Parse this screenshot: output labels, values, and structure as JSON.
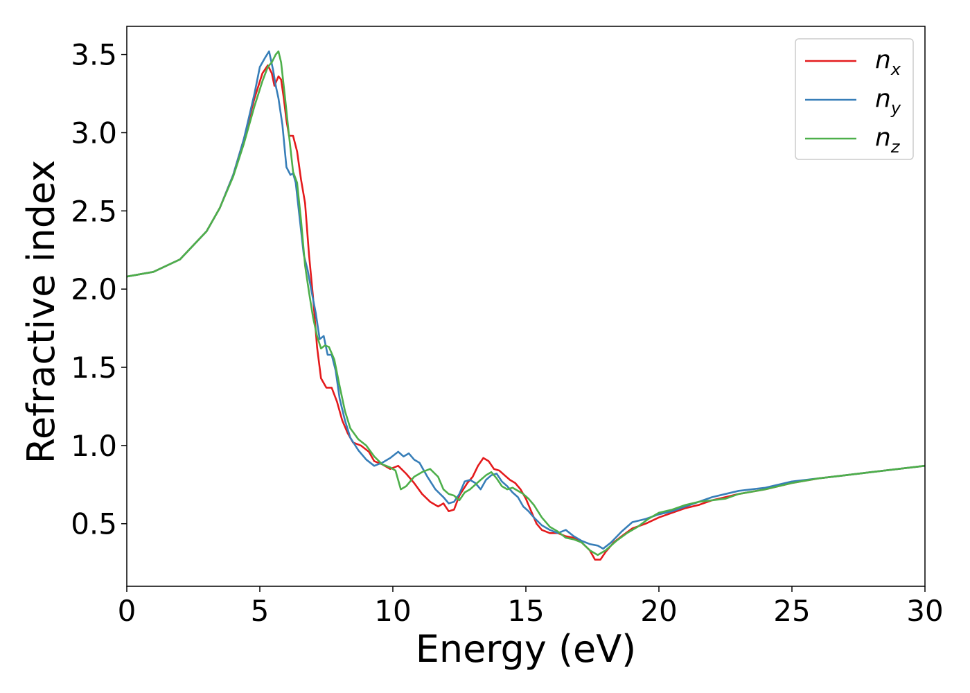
{
  "chart_data": {
    "type": "line",
    "xlabel": "Energy (eV)",
    "ylabel": "Refractive index",
    "xlim": [
      0,
      30
    ],
    "ylim": [
      0.1,
      3.68
    ],
    "xticks": [
      0,
      5,
      10,
      15,
      20,
      25,
      30
    ],
    "xtick_labels": [
      "0",
      "5",
      "10",
      "15",
      "20",
      "25",
      "30"
    ],
    "yticks": [
      0.5,
      1.0,
      1.5,
      2.0,
      2.5,
      3.0,
      3.5
    ],
    "ytick_labels": [
      "0.5",
      "1.0",
      "1.5",
      "2.0",
      "2.5",
      "3.0",
      "3.5"
    ],
    "grid": false,
    "legend_position": "top-right",
    "series": [
      {
        "name": "n_x",
        "label_main": "n",
        "label_sub": "x",
        "color": "#e41a1c",
        "x": [
          0,
          1,
          2,
          3,
          3.5,
          4,
          4.4,
          4.8,
          5.1,
          5.3,
          5.45,
          5.55,
          5.7,
          5.8,
          5.9,
          6.0,
          6.1,
          6.25,
          6.4,
          6.55,
          6.7,
          6.85,
          7.0,
          7.15,
          7.3,
          7.5,
          7.7,
          7.9,
          8.1,
          8.3,
          8.5,
          8.8,
          9.1,
          9.3,
          9.6,
          9.9,
          10.2,
          10.5,
          10.8,
          11.1,
          11.4,
          11.7,
          11.9,
          12.1,
          12.3,
          12.5,
          12.8,
          13.0,
          13.2,
          13.4,
          13.6,
          13.8,
          14.0,
          14.2,
          14.4,
          14.6,
          14.8,
          15.0,
          15.2,
          15.4,
          15.6,
          15.9,
          16.2,
          16.5,
          16.8,
          17.1,
          17.4,
          17.6,
          17.8,
          18.0,
          18.3,
          18.6,
          19.0,
          19.5,
          20.0,
          20.5,
          21.0,
          21.5,
          22.0,
          22.5,
          23.0,
          24.0,
          25.0,
          26.0,
          27.0,
          28.0,
          29.0,
          30.0
        ],
        "y": [
          2.08,
          2.11,
          2.19,
          2.37,
          2.52,
          2.73,
          2.96,
          3.22,
          3.38,
          3.43,
          3.38,
          3.3,
          3.36,
          3.34,
          3.22,
          3.08,
          2.98,
          2.98,
          2.88,
          2.7,
          2.55,
          2.22,
          1.95,
          1.63,
          1.43,
          1.37,
          1.37,
          1.28,
          1.16,
          1.08,
          1.02,
          1.0,
          0.96,
          0.9,
          0.88,
          0.85,
          0.87,
          0.82,
          0.76,
          0.69,
          0.64,
          0.61,
          0.63,
          0.58,
          0.59,
          0.68,
          0.76,
          0.8,
          0.87,
          0.92,
          0.9,
          0.85,
          0.84,
          0.81,
          0.78,
          0.76,
          0.72,
          0.66,
          0.58,
          0.5,
          0.46,
          0.44,
          0.44,
          0.42,
          0.41,
          0.38,
          0.33,
          0.27,
          0.27,
          0.32,
          0.38,
          0.42,
          0.47,
          0.5,
          0.54,
          0.57,
          0.6,
          0.62,
          0.65,
          0.67,
          0.69,
          0.72,
          0.76,
          0.79,
          0.81,
          0.83,
          0.85,
          0.87
        ]
      },
      {
        "name": "n_y",
        "label_main": "n",
        "label_sub": "y",
        "color": "#377eb8",
        "x": [
          0,
          1,
          2,
          3,
          3.5,
          4,
          4.4,
          4.8,
          5.0,
          5.2,
          5.35,
          5.5,
          5.6,
          5.7,
          5.85,
          6.0,
          6.15,
          6.25,
          6.35,
          6.5,
          6.65,
          6.8,
          6.95,
          7.1,
          7.25,
          7.4,
          7.55,
          7.7,
          7.85,
          8.0,
          8.2,
          8.4,
          8.7,
          9.0,
          9.3,
          9.6,
          9.9,
          10.2,
          10.4,
          10.6,
          10.8,
          11.0,
          11.3,
          11.6,
          11.9,
          12.1,
          12.3,
          12.5,
          12.7,
          12.9,
          13.1,
          13.3,
          13.5,
          13.7,
          13.9,
          14.1,
          14.3,
          14.5,
          14.7,
          14.9,
          15.1,
          15.3,
          15.6,
          15.9,
          16.2,
          16.5,
          16.8,
          17.1,
          17.4,
          17.7,
          17.9,
          18.2,
          18.6,
          19.0,
          19.5,
          20.0,
          20.5,
          21.0,
          21.5,
          22.0,
          22.5,
          23.0,
          24.0,
          25.0,
          26.0,
          27.0,
          28.0,
          29.0,
          30.0
        ],
        "y": [
          2.08,
          2.11,
          2.19,
          2.37,
          2.52,
          2.73,
          2.96,
          3.25,
          3.42,
          3.48,
          3.52,
          3.4,
          3.3,
          3.22,
          3.05,
          2.78,
          2.73,
          2.74,
          2.68,
          2.45,
          2.22,
          2.12,
          1.98,
          1.85,
          1.68,
          1.7,
          1.58,
          1.58,
          1.48,
          1.3,
          1.16,
          1.05,
          0.97,
          0.91,
          0.87,
          0.89,
          0.92,
          0.96,
          0.93,
          0.95,
          0.91,
          0.89,
          0.8,
          0.72,
          0.67,
          0.63,
          0.64,
          0.69,
          0.77,
          0.78,
          0.76,
          0.72,
          0.78,
          0.81,
          0.82,
          0.77,
          0.74,
          0.7,
          0.67,
          0.61,
          0.58,
          0.54,
          0.49,
          0.46,
          0.44,
          0.46,
          0.42,
          0.39,
          0.37,
          0.36,
          0.34,
          0.38,
          0.45,
          0.51,
          0.53,
          0.56,
          0.58,
          0.61,
          0.64,
          0.67,
          0.69,
          0.71,
          0.73,
          0.77,
          0.79,
          0.81,
          0.83,
          0.85,
          0.87
        ]
      },
      {
        "name": "n_z",
        "label_main": "n",
        "label_sub": "z",
        "color": "#4daf4a",
        "x": [
          0,
          1,
          2,
          3,
          3.5,
          4,
          4.4,
          4.8,
          5.1,
          5.3,
          5.45,
          5.6,
          5.7,
          5.8,
          5.95,
          6.1,
          6.25,
          6.4,
          6.55,
          6.7,
          6.85,
          7.0,
          7.15,
          7.3,
          7.45,
          7.6,
          7.8,
          8.0,
          8.2,
          8.4,
          8.7,
          9.0,
          9.3,
          9.6,
          9.9,
          10.1,
          10.3,
          10.5,
          10.8,
          11.1,
          11.4,
          11.7,
          11.9,
          12.1,
          12.3,
          12.5,
          12.7,
          12.9,
          13.1,
          13.3,
          13.5,
          13.7,
          13.9,
          14.1,
          14.3,
          14.5,
          14.7,
          14.9,
          15.1,
          15.3,
          15.6,
          15.9,
          16.2,
          16.5,
          16.8,
          17.1,
          17.4,
          17.7,
          18.0,
          18.4,
          18.8,
          19.2,
          19.6,
          20.0,
          20.5,
          21.0,
          21.5,
          22.0,
          22.5,
          23.0,
          24.0,
          25.0,
          26.0,
          27.0,
          28.0,
          29.0,
          30.0
        ],
        "y": [
          2.08,
          2.11,
          2.19,
          2.37,
          2.52,
          2.72,
          2.93,
          3.17,
          3.33,
          3.42,
          3.45,
          3.5,
          3.52,
          3.45,
          3.22,
          2.98,
          2.75,
          2.68,
          2.44,
          2.15,
          1.98,
          1.82,
          1.7,
          1.62,
          1.64,
          1.63,
          1.55,
          1.38,
          1.22,
          1.11,
          1.04,
          1.0,
          0.93,
          0.88,
          0.86,
          0.84,
          0.72,
          0.74,
          0.8,
          0.83,
          0.85,
          0.8,
          0.72,
          0.69,
          0.68,
          0.65,
          0.7,
          0.72,
          0.75,
          0.78,
          0.81,
          0.83,
          0.79,
          0.74,
          0.72,
          0.73,
          0.71,
          0.69,
          0.66,
          0.62,
          0.54,
          0.48,
          0.45,
          0.41,
          0.4,
          0.38,
          0.33,
          0.3,
          0.33,
          0.39,
          0.44,
          0.48,
          0.53,
          0.57,
          0.59,
          0.62,
          0.64,
          0.65,
          0.66,
          0.69,
          0.72,
          0.76,
          0.79,
          0.81,
          0.83,
          0.85,
          0.87
        ]
      }
    ]
  }
}
